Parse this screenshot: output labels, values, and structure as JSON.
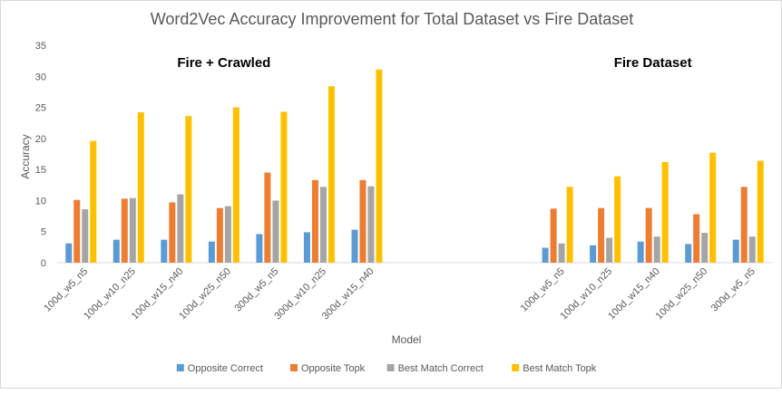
{
  "chart_data": {
    "type": "bar",
    "title": "Word2Vec Accuracy Improvement for Total Dataset vs Fire Dataset",
    "xlabel": "Model",
    "ylabel": "Accuracy",
    "ylim": [
      0,
      35
    ],
    "yticks": [
      0,
      5,
      10,
      15,
      20,
      25,
      30,
      35
    ],
    "grid": false,
    "legend_position": "bottom",
    "groups": [
      {
        "label": "Fire + Crawled",
        "categories": [
          "100d_w5_n5",
          "100d_w10_n25",
          "100d_w15_n40",
          "100d_w25_n50",
          "300d_w5_n5",
          "300d_w10_n25",
          "300d_w15_n40"
        ]
      },
      {
        "label": "Fire Dataset",
        "categories": [
          "100d_w5_n5",
          "100d_w10_n25",
          "100d_w15_n40",
          "100d_w25_n50",
          "300d_w5_n5"
        ]
      }
    ],
    "series": [
      {
        "name": "Opposite Correct",
        "color": "#5b9bd5",
        "values": [
          3.1,
          3.7,
          3.7,
          3.4,
          4.6,
          4.9,
          5.3,
          2.4,
          2.8,
          3.4,
          3.0,
          3.7
        ]
      },
      {
        "name": "Opposite Topk",
        "color": "#ed7d31",
        "values": [
          10.1,
          10.3,
          9.7,
          8.8,
          14.5,
          13.3,
          13.3,
          8.7,
          8.8,
          8.8,
          7.8,
          12.2
        ]
      },
      {
        "name": "Best Match Correct",
        "color": "#a5a5a5",
        "values": [
          8.6,
          10.4,
          11.0,
          9.1,
          10.0,
          12.2,
          12.3,
          3.1,
          4.0,
          4.2,
          4.8,
          4.2
        ]
      },
      {
        "name": "Best Match Topk",
        "color": "#ffc000",
        "values": [
          19.6,
          24.2,
          23.6,
          25.0,
          24.3,
          28.4,
          31.1,
          12.2,
          13.9,
          16.2,
          17.7,
          16.4
        ]
      }
    ]
  }
}
